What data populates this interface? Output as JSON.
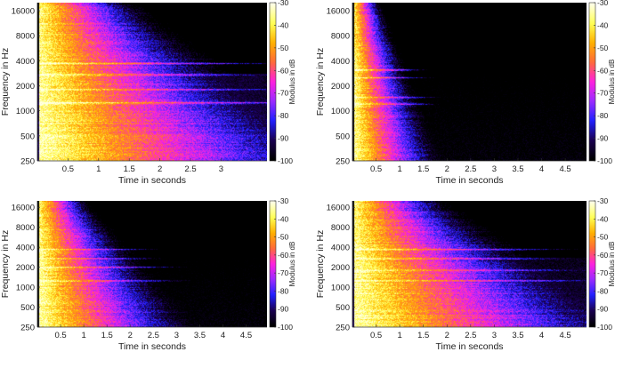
{
  "colormap": [
    "#000000",
    "#1a0050",
    "#2020ff",
    "#9a2bff",
    "#ff20e0",
    "#ff6a3a",
    "#ffb000",
    "#ffff55",
    "#ffffe8"
  ],
  "chart_data": [
    {
      "type": "heatmap",
      "xlabel": "Time in seconds",
      "ylabel": "Frequency in Hz",
      "colorbar_label": "Modulus in dB",
      "x_ticks": [
        "0.5",
        "1",
        "1.5",
        "2",
        "2.5",
        "3"
      ],
      "x_tick_values": [
        0.5,
        1,
        1.5,
        2,
        2.5,
        3
      ],
      "xlim": [
        0,
        3.75
      ],
      "y_ticks": [
        "250",
        "500",
        "1000",
        "2000",
        "4000",
        "8000",
        "16000"
      ],
      "y_tick_values": [
        250,
        500,
        1000,
        2000,
        4000,
        8000,
        16000
      ],
      "ylim": [
        250,
        20000
      ],
      "y_scale": "log",
      "colorbar_ticks": [
        "-30",
        "-40",
        "-50",
        "-60",
        "-70",
        "-80",
        "-90",
        "-100"
      ],
      "clim": [
        -100,
        -30
      ],
      "decay_s": 1.5,
      "floor_db": -92,
      "bands_hz": [
        1250,
        1800,
        2700,
        3700
      ]
    },
    {
      "type": "heatmap",
      "xlabel": "Time in seconds",
      "ylabel": "Frequency in Hz",
      "colorbar_label": "Modulus in dB",
      "x_ticks": [
        "0.5",
        "1",
        "1.5",
        "2",
        "2.5",
        "3",
        "3.5",
        "4",
        "4.5"
      ],
      "x_tick_values": [
        0.5,
        1,
        1.5,
        2,
        2.5,
        3,
        3.5,
        4,
        4.5
      ],
      "xlim": [
        0,
        4.95
      ],
      "y_ticks": [
        "250",
        "500",
        "1000",
        "2000",
        "4000",
        "8000",
        "16000"
      ],
      "y_tick_values": [
        250,
        500,
        1000,
        2000,
        4000,
        8000,
        16000
      ],
      "ylim": [
        250,
        20000
      ],
      "y_scale": "log",
      "colorbar_ticks": [
        "-30",
        "-40",
        "-50",
        "-60",
        "-70",
        "-80",
        "-90",
        "-100"
      ],
      "clim": [
        -100,
        -30
      ],
      "decay_s": 0.55,
      "floor_db": -100,
      "bands_hz": [
        1200,
        1450,
        2500,
        3100
      ]
    },
    {
      "type": "heatmap",
      "xlabel": "Time in seconds",
      "ylabel": "Frequency in Hz",
      "colorbar_label": "Modulus in dB",
      "x_ticks": [
        "0.5",
        "1",
        "1.5",
        "2",
        "2.5",
        "3",
        "3.5",
        "4",
        "4.5"
      ],
      "x_tick_values": [
        0.5,
        1,
        1.5,
        2,
        2.5,
        3,
        3.5,
        4,
        4.5
      ],
      "xlim": [
        0,
        4.95
      ],
      "y_ticks": [
        "250",
        "500",
        "1000",
        "2000",
        "4000",
        "8000",
        "16000"
      ],
      "y_tick_values": [
        250,
        500,
        1000,
        2000,
        4000,
        8000,
        16000
      ],
      "ylim": [
        250,
        20000
      ],
      "y_scale": "log",
      "colorbar_ticks": [
        "-30",
        "-40",
        "-50",
        "-60",
        "-70",
        "-80",
        "-90",
        "-100"
      ],
      "clim": [
        -100,
        -30
      ],
      "decay_s": 1.0,
      "floor_db": -100,
      "bands_hz": [
        1250,
        2000,
        2700,
        3700
      ]
    },
    {
      "type": "heatmap",
      "xlabel": "Time in seconds",
      "ylabel": "Frequency in Hz",
      "colorbar_label": "Modulus in dB",
      "x_ticks": [
        "0.5",
        "1",
        "1.5",
        "2",
        "2.5",
        "3",
        "3.5",
        "4",
        "4.5"
      ],
      "x_tick_values": [
        0.5,
        1,
        1.5,
        2,
        2.5,
        3,
        3.5,
        4,
        4.5
      ],
      "xlim": [
        0,
        4.95
      ],
      "y_ticks": [
        "250",
        "500",
        "1000",
        "2000",
        "4000",
        "8000",
        "16000"
      ],
      "y_tick_values": [
        250,
        500,
        1000,
        2000,
        4000,
        8000,
        16000
      ],
      "ylim": [
        250,
        20000
      ],
      "y_scale": "log",
      "colorbar_ticks": [
        "-30",
        "-40",
        "-50",
        "-60",
        "-70",
        "-80",
        "-90",
        "-100"
      ],
      "clim": [
        -100,
        -30
      ],
      "decay_s": 1.8,
      "floor_db": -94,
      "bands_hz": [
        1250,
        1800,
        2700,
        3700
      ]
    }
  ]
}
